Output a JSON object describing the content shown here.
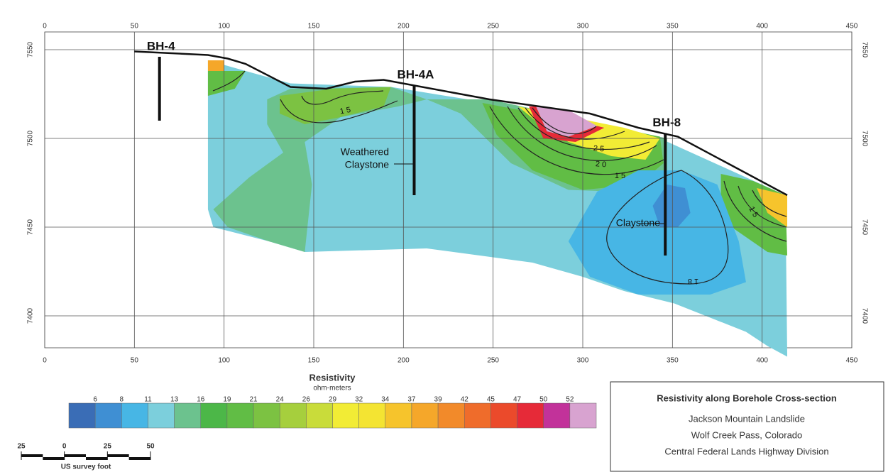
{
  "chart_data": {
    "type": "section",
    "xlim": [
      0,
      450
    ],
    "ylim": [
      7382,
      7560
    ],
    "xticks": [
      0,
      50,
      100,
      150,
      200,
      250,
      300,
      350,
      400,
      450
    ],
    "yticks": [
      7400,
      7450,
      7500,
      7550
    ],
    "grid": true,
    "surface": {
      "x": [
        50,
        91,
        102,
        112,
        137,
        157,
        173,
        189,
        248,
        304,
        331,
        353,
        414
      ],
      "y": [
        7549,
        7547,
        7545,
        7542,
        7529,
        7528,
        7532,
        7533,
        7522,
        7514,
        7506,
        7501,
        7468
      ]
    },
    "boreholes": [
      {
        "name": "BH-4",
        "x": 64,
        "top": 7546,
        "bottom": 7510
      },
      {
        "name": "BH-4A",
        "x": 206,
        "top": 7530,
        "bottom": 7468
      },
      {
        "name": "BH-8",
        "x": 346,
        "top": 7503,
        "bottom": 7434
      }
    ],
    "annotations": [
      {
        "lines": [
          "Weathered",
          "Claystone"
        ]
      },
      {
        "lines": [
          "Claystone"
        ]
      }
    ],
    "contour_labels": [
      "15",
      "25",
      "20",
      "15",
      "15",
      "18"
    ],
    "regions": [
      {
        "resistivity": 12,
        "x": [
          91,
          112,
          137,
          193,
          248,
          343,
          413,
          414,
          403,
          391,
          371,
          351,
          323,
          300,
          272,
          213,
          145,
          125,
          94,
          91
        ],
        "y": [
          7544,
          7538,
          7531,
          7529,
          7520,
          7500,
          7468,
          7377,
          7383,
          7391,
          7399,
          7407,
          7414,
          7422,
          7430,
          7438,
          7436,
          7442,
          7450,
          7460
        ]
      },
      {
        "resistivity": 15,
        "x": [
          124,
          137,
          193,
          213,
          197,
          165,
          145,
          149,
          145,
          125,
          102,
          94,
          114,
          133,
          124
        ],
        "y": [
          7522,
          7528,
          7529,
          7522,
          7518,
          7512,
          7498,
          7474,
          7436,
          7442,
          7450,
          7460,
          7478,
          7492,
          7508
        ]
      },
      {
        "resistivity": 21,
        "x": [
          131,
          161,
          193,
          189,
          165,
          145,
          131
        ],
        "y": [
          7524,
          7528,
          7529,
          7518,
          7512,
          7508,
          7514
        ]
      },
      {
        "resistivity": 20,
        "x": [
          91,
          112,
          106,
          91
        ],
        "y": [
          7538,
          7538,
          7528,
          7524
        ]
      },
      {
        "resistivity": 38,
        "x": [
          91,
          100,
          100,
          91
        ],
        "y": [
          7544,
          7544,
          7538,
          7538
        ]
      },
      {
        "resistivity": 15,
        "x": [
          213,
          248,
          347,
          347,
          319,
          292,
          260,
          232
        ],
        "y": [
          7522,
          7522,
          7500,
          7478,
          7470,
          7471,
          7486,
          7514
        ]
      },
      {
        "resistivity": 20,
        "x": [
          244,
          343,
          345,
          331,
          300,
          272,
          252
        ],
        "y": [
          7520,
          7501,
          7486,
          7474,
          7471,
          7482,
          7502
        ]
      },
      {
        "resistivity": 30,
        "x": [
          264,
          323,
          343,
          335,
          316,
          292,
          276
        ],
        "y": [
          7518,
          7506,
          7500,
          7488,
          7490,
          7498,
          7508
        ]
      },
      {
        "resistivity": 48,
        "x": [
          270,
          274,
          280,
          292,
          308,
          312,
          296,
          278
        ],
        "y": [
          7518,
          7518,
          7504,
          7501,
          7507,
          7506,
          7498,
          7500
        ]
      },
      {
        "resistivity": 53,
        "x": [
          274,
          292,
          308,
          292,
          280
        ],
        "y": [
          7518,
          7516,
          7507,
          7501,
          7504
        ]
      },
      {
        "resistivity": 20,
        "x": [
          377,
          395,
          413,
          414,
          403,
          383,
          377
        ],
        "y": [
          7480,
          7476,
          7468,
          7434,
          7436,
          7450,
          7466
        ]
      },
      {
        "resistivity": 36,
        "x": [
          397,
          414,
          414,
          403
        ],
        "y": [
          7472,
          7468,
          7450,
          7458
        ]
      },
      {
        "resistivity": 10,
        "x": [
          292,
          308,
          331,
          355,
          375,
          387,
          391,
          371,
          331,
          304
        ],
        "y": [
          7442,
          7470,
          7482,
          7482,
          7474,
          7442,
          7419,
          7412,
          7412,
          7422
        ]
      },
      {
        "resistivity": 7,
        "x": [
          339,
          347,
          357,
          360,
          353,
          343
        ],
        "y": [
          7462,
          7474,
          7472,
          7458,
          7450,
          7450
        ]
      }
    ],
    "colorbar": {
      "title": "Resistivity",
      "unit": "ohm-meters",
      "ticks": [
        6,
        8,
        11,
        13,
        16,
        19,
        21,
        24,
        26,
        29,
        32,
        34,
        37,
        39,
        42,
        45,
        47,
        50,
        52
      ],
      "colors": [
        "#3a6db6",
        "#3f8fd3",
        "#47b6e5",
        "#7ccfdc",
        "#6cc28e",
        "#4cb748",
        "#61bd45",
        "#7cc242",
        "#a6cf3d",
        "#c9dc3a",
        "#f2ec35",
        "#f4e432",
        "#f6c42c",
        "#f5a72a",
        "#f28a2a",
        "#ef6c2b",
        "#eb4a2b",
        "#e62a38",
        "#c2329a",
        "#d8a3d0"
      ]
    },
    "scale_bar": {
      "ticks": [
        {
          "value": -25,
          "label": "25"
        },
        0,
        25,
        50
      ],
      "unit": "US survey foot"
    },
    "legend_box": {
      "title": "Resistivity along Borehole Cross-section",
      "lines": [
        "Jackson Mountain Landslide",
        "Wolf Creek Pass, Colorado",
        "Central Federal Lands Highway Division"
      ]
    }
  }
}
